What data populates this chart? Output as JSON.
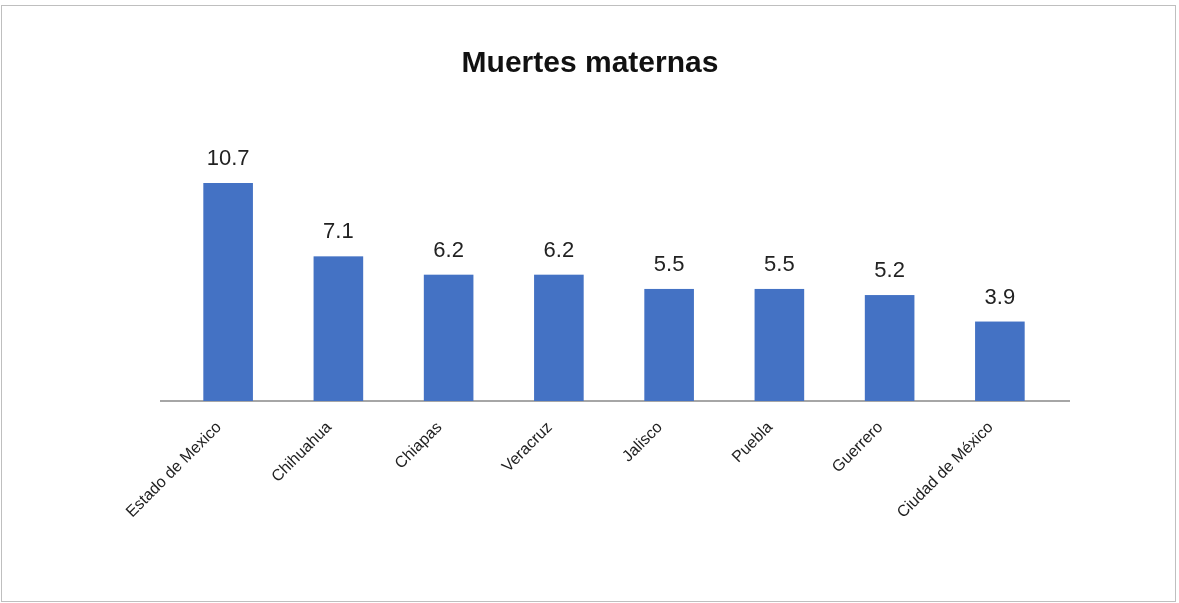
{
  "chart_data": {
    "type": "bar",
    "title": "Muertes maternas",
    "categories": [
      "Estado de Mexico",
      "Chihuahua",
      "Chiapas",
      "Veracruz",
      "Jalisco",
      "Puebla",
      "Guerrero",
      "Ciudad de México"
    ],
    "values": [
      10.7,
      7.1,
      6.2,
      6.2,
      5.5,
      5.5,
      5.2,
      3.9
    ],
    "color": "#4472c4",
    "data_labels": true
  }
}
